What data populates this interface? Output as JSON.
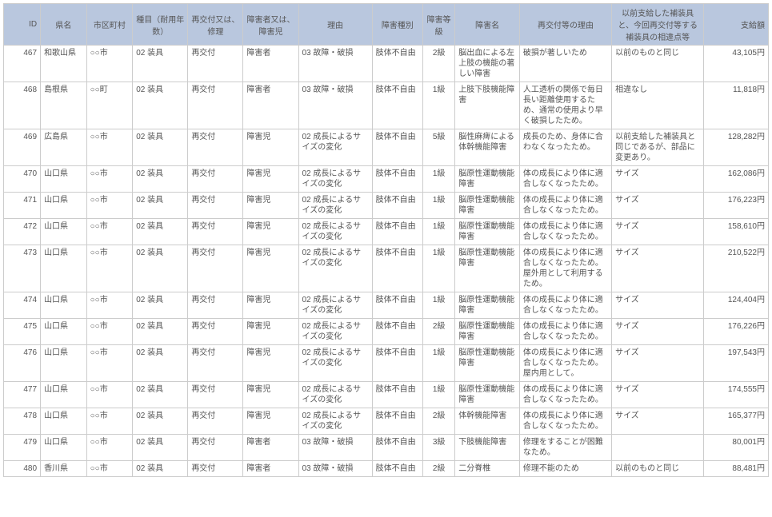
{
  "columns": [
    "ID",
    "県名",
    "市区町村",
    "種目（耐用年数）",
    "再交付又は、修理",
    "障害者又は、障害児",
    "理由",
    "障害種別",
    "障害等級",
    "障害名",
    "再交付等の理由",
    "以前支給した補装具と、今回再交付等する補装具の相違点等",
    "支給額"
  ],
  "rows": [
    {
      "id": "467",
      "pref": "和歌山県",
      "city": "○○市",
      "type": "02 装具",
      "reissue": "再交付",
      "person": "障害者",
      "reason": "03 故障・破損",
      "distype": "肢体不自由",
      "grade": "2級",
      "disname": "脳出血による左上肢の機能の著しい障害",
      "rereason": "破損が著しいため",
      "diff": "以前のものと同じ",
      "amount": "43,105円"
    },
    {
      "id": "468",
      "pref": "島根県",
      "city": "○○町",
      "type": "02 装具",
      "reissue": "再交付",
      "person": "障害者",
      "reason": "03 故障・破損",
      "distype": "肢体不自由",
      "grade": "1級",
      "disname": "上肢下肢機能障害",
      "rereason": "人工透析の関係で毎日長い距離使用するため、通常の使用より早く破損したため。",
      "diff": "相違なし",
      "amount": "11,818円"
    },
    {
      "id": "469",
      "pref": "広島県",
      "city": "○○市",
      "type": "02 装具",
      "reissue": "再交付",
      "person": "障害児",
      "reason": "02 成長によるサイズの変化",
      "distype": "肢体不自由",
      "grade": "5級",
      "disname": "脳性麻痺による体幹機能障害",
      "rereason": "成長のため、身体に合わなくなったため。",
      "diff": "以前支給した補装具と同じであるが、部品に変更あり。",
      "amount": "128,282円"
    },
    {
      "id": "470",
      "pref": "山口県",
      "city": "○○市",
      "type": "02 装具",
      "reissue": "再交付",
      "person": "障害児",
      "reason": "02 成長によるサイズの変化",
      "distype": "肢体不自由",
      "grade": "1級",
      "disname": "脳原性運動機能障害",
      "rereason": "体の成長により体に適合しなくなったため。",
      "diff": "サイズ",
      "amount": "162,086円"
    },
    {
      "id": "471",
      "pref": "山口県",
      "city": "○○市",
      "type": "02 装具",
      "reissue": "再交付",
      "person": "障害児",
      "reason": "02 成長によるサイズの変化",
      "distype": "肢体不自由",
      "grade": "1級",
      "disname": "脳原性運動機能障害",
      "rereason": "体の成長により体に適合しなくなったため。",
      "diff": "サイズ",
      "amount": "176,223円"
    },
    {
      "id": "472",
      "pref": "山口県",
      "city": "○○市",
      "type": "02 装具",
      "reissue": "再交付",
      "person": "障害児",
      "reason": "02 成長によるサイズの変化",
      "distype": "肢体不自由",
      "grade": "1級",
      "disname": "脳原性運動機能障害",
      "rereason": "体の成長により体に適合しなくなったため。",
      "diff": "サイズ",
      "amount": "158,610円"
    },
    {
      "id": "473",
      "pref": "山口県",
      "city": "○○市",
      "type": "02 装具",
      "reissue": "再交付",
      "person": "障害児",
      "reason": "02 成長によるサイズの変化",
      "distype": "肢体不自由",
      "grade": "1級",
      "disname": "脳原性運動機能障害",
      "rereason": "体の成長により体に適合しなくなったため。屋外用として利用するため。",
      "diff": "サイズ",
      "amount": "210,522円"
    },
    {
      "id": "474",
      "pref": "山口県",
      "city": "○○市",
      "type": "02 装具",
      "reissue": "再交付",
      "person": "障害児",
      "reason": "02 成長によるサイズの変化",
      "distype": "肢体不自由",
      "grade": "1級",
      "disname": "脳原性運動機能障害",
      "rereason": "体の成長により体に適合しなくなったため。",
      "diff": "サイズ",
      "amount": "124,404円"
    },
    {
      "id": "475",
      "pref": "山口県",
      "city": "○○市",
      "type": "02 装具",
      "reissue": "再交付",
      "person": "障害児",
      "reason": "02 成長によるサイズの変化",
      "distype": "肢体不自由",
      "grade": "2級",
      "disname": "脳原性運動機能障害",
      "rereason": "体の成長により体に適合しなくなったため。",
      "diff": "サイズ",
      "amount": "176,226円"
    },
    {
      "id": "476",
      "pref": "山口県",
      "city": "○○市",
      "type": "02 装具",
      "reissue": "再交付",
      "person": "障害児",
      "reason": "02 成長によるサイズの変化",
      "distype": "肢体不自由",
      "grade": "1級",
      "disname": "脳原性運動機能障害",
      "rereason": "体の成長により体に適合しなくなったため。屋内用として。",
      "diff": "サイズ",
      "amount": "197,543円"
    },
    {
      "id": "477",
      "pref": "山口県",
      "city": "○○市",
      "type": "02 装具",
      "reissue": "再交付",
      "person": "障害児",
      "reason": "02 成長によるサイズの変化",
      "distype": "肢体不自由",
      "grade": "1級",
      "disname": "脳原性運動機能障害",
      "rereason": "体の成長により体に適合しなくなったため。",
      "diff": "サイズ",
      "amount": "174,555円"
    },
    {
      "id": "478",
      "pref": "山口県",
      "city": "○○市",
      "type": "02 装具",
      "reissue": "再交付",
      "person": "障害児",
      "reason": "02 成長によるサイズの変化",
      "distype": "肢体不自由",
      "grade": "2級",
      "disname": "体幹機能障害",
      "rereason": "体の成長により体に適合しなくなったため。",
      "diff": "サイズ",
      "amount": "165,377円"
    },
    {
      "id": "479",
      "pref": "山口県",
      "city": "○○市",
      "type": "02 装具",
      "reissue": "再交付",
      "person": "障害者",
      "reason": "03 故障・破損",
      "distype": "肢体不自由",
      "grade": "3級",
      "disname": "下肢機能障害",
      "rereason": "修理をすることが困難なため。",
      "diff": "",
      "amount": "80,001円"
    },
    {
      "id": "480",
      "pref": "香川県",
      "city": "○○市",
      "type": "02 装具",
      "reissue": "再交付",
      "person": "障害者",
      "reason": "03 故障・破損",
      "distype": "肢体不自由",
      "grade": "2級",
      "disname": "二分脊椎",
      "rereason": "修理不能のため",
      "diff": "以前のものと同じ",
      "amount": "88,481円"
    }
  ]
}
